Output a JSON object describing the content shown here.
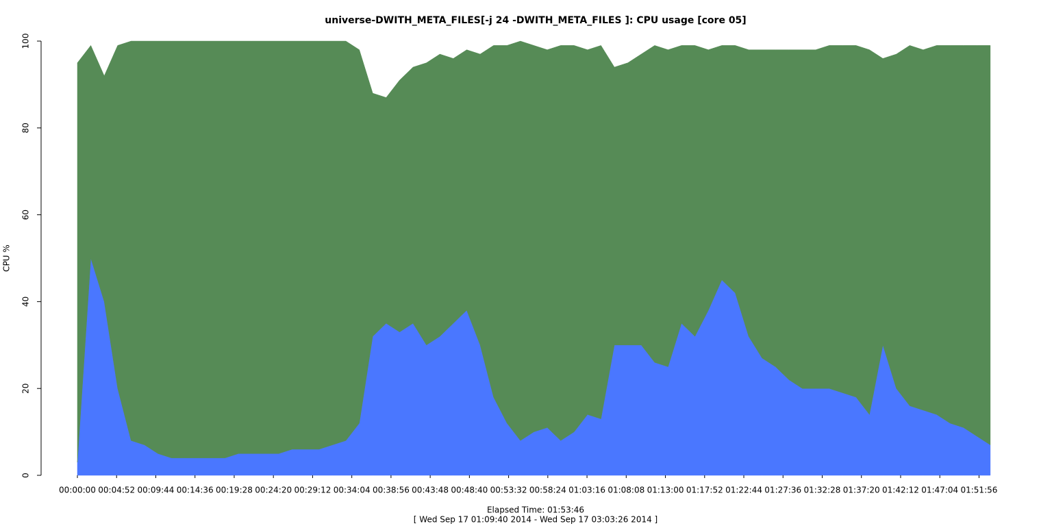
{
  "chart_data": {
    "type": "area",
    "stacked": true,
    "title": "universe-DWITH_META_FILES[-j 24 -DWITH_META_FILES ]: CPU usage [core 05]",
    "y_label": "CPU %",
    "x_label": "Elapsed Time: 01:53:46",
    "subtitle": "[ Wed Sep 17 01:09:40 2014 - Wed Sep 17 03:03:26 2014 ]",
    "x": [
      0,
      100,
      200,
      300,
      400,
      500,
      600,
      700,
      800,
      900,
      1000,
      1100,
      1200,
      1300,
      1400,
      1500,
      1600,
      1700,
      1800,
      1900,
      2000,
      2100,
      2200,
      2300,
      2400,
      2500,
      2600,
      2700,
      2800,
      2900,
      3000,
      3100,
      3200,
      3300,
      3400,
      3500,
      3600,
      3700,
      3800,
      3900,
      4000,
      4100,
      4200,
      4300,
      4400,
      4500,
      4600,
      4700,
      4800,
      4900,
      5000,
      5100,
      5200,
      5300,
      5400,
      5500,
      5600,
      5700,
      5800,
      5900,
      6000,
      6100,
      6200,
      6300,
      6400,
      6500,
      6600,
      6700,
      6800
    ],
    "series": [
      {
        "color": "#4a77ff",
        "values": [
          3,
          50,
          40,
          20,
          8,
          7,
          5,
          4,
          4,
          4,
          4,
          4,
          5,
          5,
          5,
          5,
          6,
          6,
          6,
          7,
          8,
          12,
          32,
          35,
          33,
          35,
          30,
          32,
          35,
          38,
          30,
          18,
          12,
          8,
          10,
          11,
          8,
          10,
          14,
          13,
          30,
          30,
          30,
          26,
          25,
          35,
          32,
          38,
          45,
          42,
          32,
          27,
          25,
          22,
          20,
          20,
          20,
          19,
          18,
          14,
          30,
          20,
          16,
          15,
          14,
          12,
          11,
          9,
          7
        ]
      },
      {
        "color": "#568b56",
        "values": [
          92,
          49,
          52,
          79,
          92,
          93,
          95,
          96,
          96,
          96,
          96,
          96,
          95,
          95,
          95,
          95,
          94,
          94,
          94,
          93,
          92,
          86,
          56,
          52,
          58,
          59,
          65,
          65,
          61,
          60,
          67,
          81,
          87,
          92,
          89,
          87,
          91,
          89,
          84,
          86,
          64,
          65,
          67,
          73,
          73,
          64,
          67,
          60,
          54,
          57,
          66,
          71,
          73,
          76,
          78,
          78,
          79,
          80,
          81,
          84,
          66,
          77,
          83,
          83,
          85,
          87,
          88,
          90,
          92
        ]
      }
    ],
    "xlim": [
      0,
      6826
    ],
    "ylim": [
      0,
      100
    ],
    "yticks": [
      0,
      20,
      40,
      60,
      80,
      100
    ],
    "xticks": [
      {
        "value": 0,
        "label": "00:00:00"
      },
      {
        "value": 292,
        "label": "00:04:52"
      },
      {
        "value": 584,
        "label": "00:09:44"
      },
      {
        "value": 876,
        "label": "00:14:36"
      },
      {
        "value": 1168,
        "label": "00:19:28"
      },
      {
        "value": 1460,
        "label": "00:24:20"
      },
      {
        "value": 1752,
        "label": "00:29:12"
      },
      {
        "value": 2044,
        "label": "00:34:04"
      },
      {
        "value": 2336,
        "label": "00:38:56"
      },
      {
        "value": 2628,
        "label": "00:43:48"
      },
      {
        "value": 2920,
        "label": "00:48:40"
      },
      {
        "value": 3212,
        "label": "00:53:32"
      },
      {
        "value": 3504,
        "label": "00:58:24"
      },
      {
        "value": 3796,
        "label": "01:03:16"
      },
      {
        "value": 4088,
        "label": "01:08:08"
      },
      {
        "value": 4380,
        "label": "01:13:00"
      },
      {
        "value": 4672,
        "label": "01:17:52"
      },
      {
        "value": 4964,
        "label": "01:22:44"
      },
      {
        "value": 5256,
        "label": "01:27:36"
      },
      {
        "value": 5548,
        "label": "01:32:28"
      },
      {
        "value": 5840,
        "label": "01:37:20"
      },
      {
        "value": 6132,
        "label": "01:42:12"
      },
      {
        "value": 6424,
        "label": "01:47:04"
      },
      {
        "value": 6716,
        "label": "01:51:56"
      }
    ]
  }
}
